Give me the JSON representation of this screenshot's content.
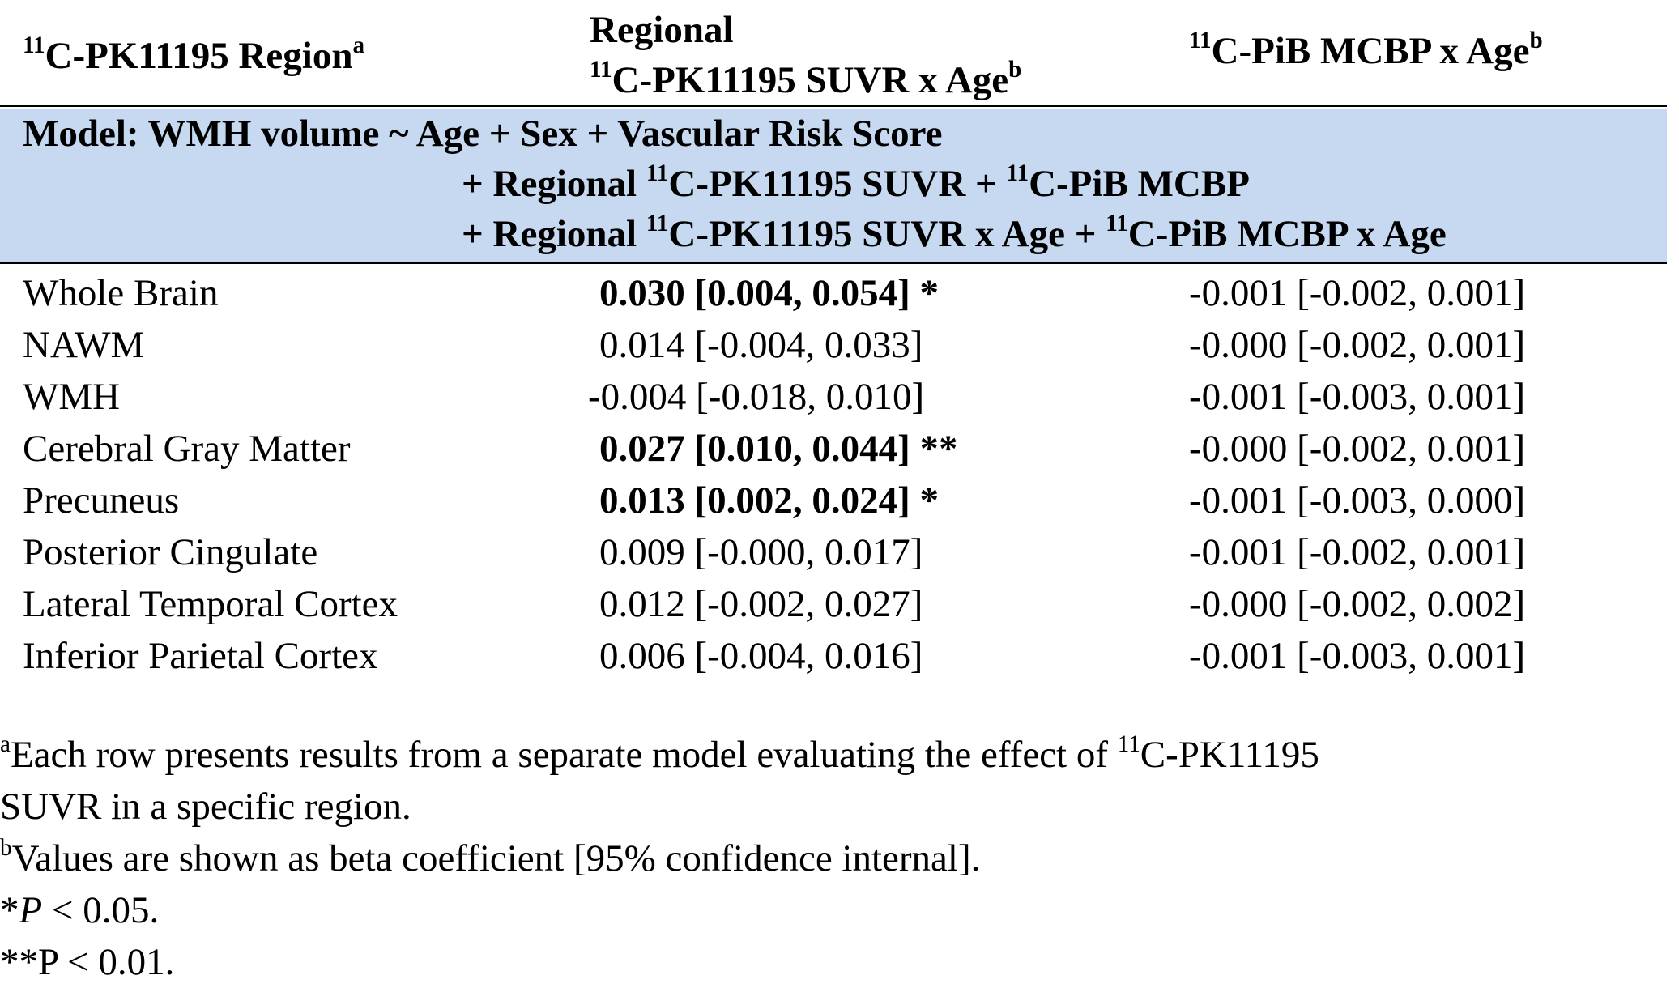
{
  "header": {
    "col1": {
      "sup": "11",
      "text": "C-PK11195 Region",
      "note": "a"
    },
    "col2_line1": "Regional",
    "col2_line2": {
      "sup": "11",
      "text": "C-PK11195 SUVR x Age",
      "note": "b"
    },
    "col3": {
      "sup": "11",
      "text": "C-PiB MCBP x Age",
      "note": "b"
    }
  },
  "model": {
    "line1": "Model: WMH volume ~ Age + Sex + Vascular Risk Score",
    "line2": {
      "a": "+ Regional ",
      "sup1": "11",
      "b": "C-PK11195 SUVR + ",
      "sup2": "11",
      "c": "C-PiB MCBP"
    },
    "line3": {
      "a": "+ Regional ",
      "sup1": "11",
      "b": "C-PK11195 SUVR x Age + ",
      "sup2": "11",
      "c": "C-PiB MCBP x Age"
    }
  },
  "rows": [
    {
      "region": "Whole Brain",
      "suvr": "0.030 [0.004, 0.054] *",
      "suvr_bold": true,
      "mcbp": "-0.001 [-0.002, 0.001]"
    },
    {
      "region": "NAWM",
      "suvr": "0.014 [-0.004, 0.033]",
      "suvr_bold": false,
      "mcbp": "-0.000 [-0.002, 0.001]"
    },
    {
      "region": "WMH",
      "suvr": "-0.004 [-0.018, 0.010]",
      "suvr_bold": false,
      "mcbp": "-0.001 [-0.003, 0.001]"
    },
    {
      "region": "Cerebral Gray Matter",
      "suvr": "0.027 [0.010, 0.044] **",
      "suvr_bold": true,
      "mcbp": "-0.000 [-0.002, 0.001]"
    },
    {
      "region": "Precuneus",
      "suvr": "0.013 [0.002, 0.024] *",
      "suvr_bold": true,
      "mcbp": "-0.001 [-0.003, 0.000]"
    },
    {
      "region": "Posterior Cingulate",
      "suvr": "0.009 [-0.000, 0.017]",
      "suvr_bold": false,
      "mcbp": "-0.001 [-0.002, 0.001]"
    },
    {
      "region": "Lateral Temporal Cortex",
      "suvr": "0.012 [-0.002, 0.027]",
      "suvr_bold": false,
      "mcbp": "-0.000 [-0.002, 0.002]"
    },
    {
      "region": "Inferior Parietal Cortex",
      "suvr": "0.006 [-0.004, 0.016]",
      "suvr_bold": false,
      "mcbp": "-0.001 [-0.003, 0.001]"
    }
  ],
  "footnotes": {
    "a": {
      "mark": "a",
      "text1": "Each row presents results from a separate model evaluating the effect of ",
      "sup": "11",
      "text2": "C-PK11195",
      "text3": "SUVR in a specific region."
    },
    "b": {
      "mark": "b",
      "text": "Values are shown as beta coefficient [95% confidence internal]."
    },
    "p1": {
      "star": "*",
      "p": "P",
      "rest": " < 0.05."
    },
    "p2": "**P < 0.01."
  },
  "colors": {
    "model_band": "#c6d9f0",
    "rule": "#000000"
  }
}
